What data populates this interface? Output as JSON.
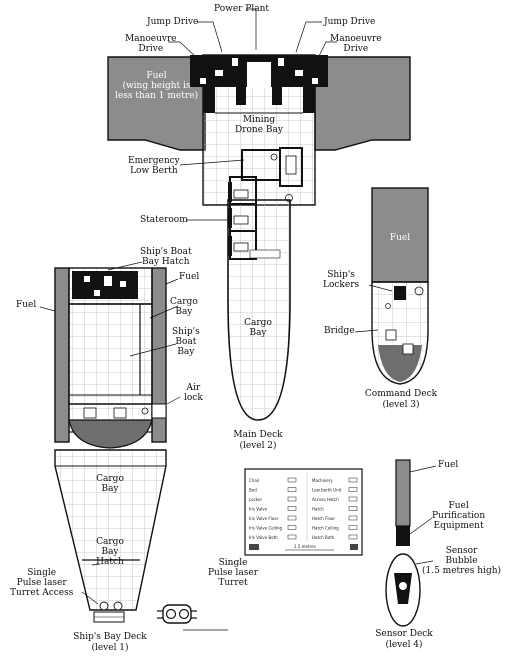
{
  "labels": {
    "power_plant": "Power Plant",
    "jump_drive_left": "Jump Drive",
    "jump_drive_right": "Jump Drive",
    "manoeuvre_drive_left": "Manoeuvre\nDrive",
    "manoeuvre_drive_right": "Manoeuvre\nDrive",
    "fuel_wing": "Fuel\n(wing height is\nless than 1 metre)",
    "mining_drone_bay": "Mining\nDrone Bay",
    "emergency_low_berth": "Emergency\nLow Berth",
    "stateroom": "Stateroom",
    "cargo_bay_main": "Cargo\nBay",
    "ships_boat_bay_hatch": "Ship's Boat\nBay Hatch",
    "fuel_boat_left": "Fuel",
    "fuel_boat_right": "Fuel",
    "cargo_bay_boat": "Cargo\nBay",
    "ships_boat_bay": "Ship's\nBoat\nBay",
    "air_lock": "Air\nlock",
    "cargo_bay_lower": "Cargo\nBay",
    "cargo_bay_hatch": "Cargo\nBay\nHatch",
    "turret_access": "Single\nPulse laser\nTurret Access",
    "turret": "Single\nPulse laser\nTurret",
    "fuel_command": "Fuel",
    "ships_lockers": "Ship's\nLockers",
    "bridge": "Bridge",
    "fuel_sensor": "Fuel",
    "fuel_purification": "Fuel\nPurification\nEquipment",
    "sensor_bubble": "Sensor\nBubble\n(1.5 metres high)"
  },
  "captions": {
    "main_deck": "Main Deck\n(level 2)",
    "command_deck": "Command Deck\n(level 3)",
    "sensor_deck": "Sensor Deck\n(level 4)",
    "ships_bay_deck": "Ship's Bay Deck\n(level 1)"
  },
  "legend": {
    "left": [
      "Chair",
      "Bed",
      "Locker",
      "Iris Valve",
      "Iris Valve Floor",
      "Iris Valve Ceiling",
      "Iris Valve Both"
    ],
    "right": [
      "Machinery",
      "Low berth Unit",
      "Access Hatch",
      "Hatch",
      "Hatch Floor",
      "Hatch Ceiling",
      "Hatch Both"
    ],
    "scale": "1.5 metres"
  },
  "colors": {
    "fuel": "#8c8c8c",
    "dark_fill": "#6e6e6e",
    "machinery": "#111111",
    "grid": "#bdbdbd",
    "line": "#111111"
  }
}
